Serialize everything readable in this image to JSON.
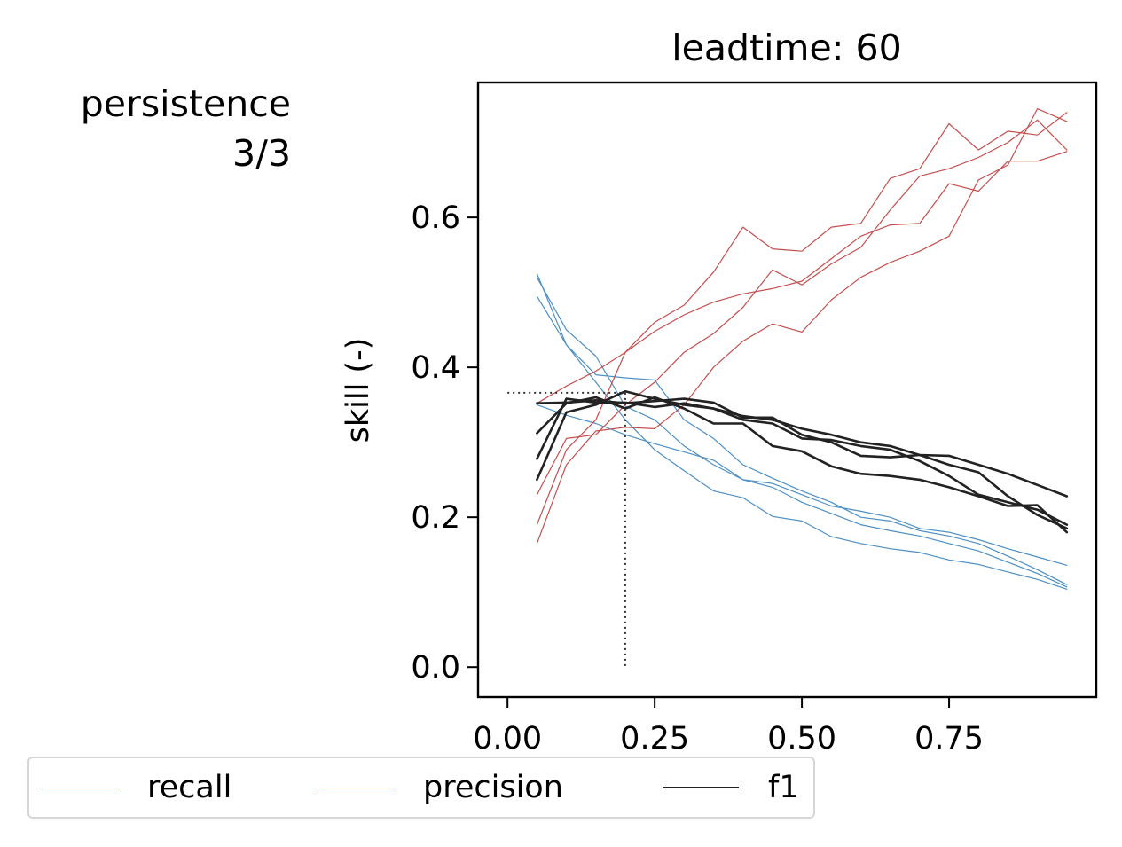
{
  "figure": {
    "row_label": "persistence",
    "row_sublabel": "3/3"
  },
  "chart_data": {
    "type": "line",
    "title": "leadtime: 60",
    "xlabel": "",
    "ylabel": "skill (-)",
    "xlim": [
      -0.05,
      1.0
    ],
    "ylim": [
      -0.04,
      0.78
    ],
    "xticks": [
      0.0,
      0.25,
      0.5,
      0.75
    ],
    "xtick_labels": [
      "0.00",
      "0.25",
      "0.50",
      "0.75"
    ],
    "yticks": [
      0.0,
      0.2,
      0.4,
      0.6
    ],
    "ytick_labels": [
      "0.0",
      "0.2",
      "0.4",
      "0.6"
    ],
    "grid": false,
    "legend_position": "bottom-left, below axes",
    "x": [
      0.05,
      0.1,
      0.15,
      0.2,
      0.25,
      0.3,
      0.35,
      0.4,
      0.45,
      0.5,
      0.55,
      0.6,
      0.65,
      0.7,
      0.75,
      0.8,
      0.85,
      0.9,
      0.95
    ],
    "marker_line": {
      "x": 0.2,
      "y": 0.366
    },
    "series": [
      {
        "name": "recall",
        "color": "#4e8fc4",
        "runs": [
          [
            0.525,
            0.43,
            0.38,
            0.33,
            0.29,
            0.262,
            0.235,
            0.226,
            0.201,
            0.195,
            0.174,
            0.165,
            0.158,
            0.153,
            0.143,
            0.137,
            0.127,
            0.117,
            0.104
          ],
          [
            0.52,
            0.45,
            0.415,
            0.348,
            0.33,
            0.295,
            0.27,
            0.25,
            0.24,
            0.22,
            0.205,
            0.19,
            0.182,
            0.175,
            0.165,
            0.155,
            0.14,
            0.125,
            0.107
          ],
          [
            0.495,
            0.43,
            0.39,
            0.386,
            0.383,
            0.33,
            0.305,
            0.27,
            0.252,
            0.235,
            0.22,
            0.2,
            0.195,
            0.182,
            0.175,
            0.165,
            0.148,
            0.13,
            0.11
          ],
          [
            0.35,
            0.336,
            0.325,
            0.31,
            0.298,
            0.287,
            0.276,
            0.25,
            0.245,
            0.23,
            0.215,
            0.208,
            0.2,
            0.185,
            0.18,
            0.17,
            0.158,
            0.147,
            0.136
          ]
        ]
      },
      {
        "name": "precision",
        "color": "#c44e4e",
        "runs": [
          [
            0.165,
            0.27,
            0.315,
            0.32,
            0.318,
            0.35,
            0.4,
            0.435,
            0.458,
            0.447,
            0.49,
            0.52,
            0.54,
            0.555,
            0.575,
            0.65,
            0.67,
            0.745,
            0.728
          ],
          [
            0.19,
            0.29,
            0.33,
            0.42,
            0.46,
            0.483,
            0.527,
            0.587,
            0.558,
            0.555,
            0.587,
            0.592,
            0.652,
            0.665,
            0.725,
            0.69,
            0.715,
            0.71,
            0.74
          ],
          [
            0.23,
            0.305,
            0.31,
            0.35,
            0.38,
            0.42,
            0.445,
            0.48,
            0.53,
            0.51,
            0.538,
            0.56,
            0.61,
            0.655,
            0.665,
            0.68,
            0.7,
            0.73,
            0.69
          ],
          [
            0.352,
            0.375,
            0.395,
            0.42,
            0.448,
            0.47,
            0.487,
            0.498,
            0.505,
            0.515,
            0.545,
            0.575,
            0.59,
            0.592,
            0.645,
            0.635,
            0.675,
            0.675,
            0.688
          ]
        ]
      },
      {
        "name": "f1",
        "color": "#222222",
        "runs": [
          [
            0.25,
            0.34,
            0.35,
            0.368,
            0.358,
            0.35,
            0.345,
            0.335,
            0.33,
            0.318,
            0.31,
            0.3,
            0.295,
            0.283,
            0.282,
            0.27,
            0.258,
            0.243,
            0.228
          ],
          [
            0.278,
            0.358,
            0.353,
            0.353,
            0.347,
            0.352,
            0.345,
            0.33,
            0.325,
            0.305,
            0.303,
            0.295,
            0.29,
            0.275,
            0.255,
            0.23,
            0.22,
            0.21,
            0.19
          ],
          [
            0.312,
            0.352,
            0.36,
            0.345,
            0.36,
            0.345,
            0.325,
            0.325,
            0.295,
            0.288,
            0.268,
            0.258,
            0.255,
            0.25,
            0.24,
            0.228,
            0.215,
            0.216,
            0.18
          ],
          [
            0.352,
            0.353,
            0.356,
            0.352,
            0.355,
            0.358,
            0.353,
            0.333,
            0.333,
            0.31,
            0.3,
            0.282,
            0.28,
            0.283,
            0.27,
            0.26,
            0.228,
            0.203,
            0.185
          ]
        ]
      }
    ]
  }
}
